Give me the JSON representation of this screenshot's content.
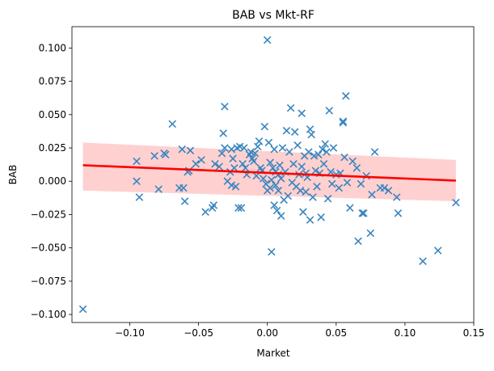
{
  "chart_data": {
    "type": "scatter",
    "title": "BAB vs Mkt-RF",
    "xlabel": "Market",
    "ylabel": "BAB",
    "xlim": [
      -0.142,
      0.15
    ],
    "ylim": [
      -0.106,
      0.116
    ],
    "xticks": [
      "−0.10",
      "−0.05",
      "0.00",
      "0.05",
      "0.10",
      "0.15"
    ],
    "xtick_values": [
      -0.1,
      -0.05,
      0.0,
      0.05,
      0.1,
      0.15
    ],
    "yticks": [
      "−0.100",
      "−0.075",
      "−0.050",
      "−0.025",
      "0.000",
      "0.025",
      "0.050",
      "0.075",
      "0.100"
    ],
    "ytick_values": [
      -0.1,
      -0.075,
      -0.05,
      -0.025,
      0.0,
      0.025,
      0.05,
      0.075,
      0.1
    ],
    "grid": false,
    "marker": "x",
    "colors": {
      "points": "#3a86c0",
      "regression": "#ff0000",
      "band": "#ffc8c8"
    },
    "regression": {
      "x": [
        -0.134,
        0.137
      ],
      "y": [
        0.012,
        0.0005
      ],
      "ci_upper": [
        0.029,
        0.016
      ],
      "ci_lower": [
        -0.007,
        -0.015
      ]
    },
    "points": [
      {
        "x": -0.134,
        "y": -0.096
      },
      {
        "x": -0.095,
        "y": 0.015
      },
      {
        "x": -0.095,
        "y": 0.0
      },
      {
        "x": -0.093,
        "y": -0.012
      },
      {
        "x": -0.082,
        "y": 0.019
      },
      {
        "x": -0.079,
        "y": -0.006
      },
      {
        "x": -0.075,
        "y": 0.021
      },
      {
        "x": -0.074,
        "y": 0.02
      },
      {
        "x": -0.069,
        "y": 0.043
      },
      {
        "x": -0.064,
        "y": -0.005
      },
      {
        "x": -0.062,
        "y": 0.024
      },
      {
        "x": -0.061,
        "y": -0.005
      },
      {
        "x": -0.06,
        "y": -0.015
      },
      {
        "x": -0.058,
        "y": 0.007
      },
      {
        "x": -0.057,
        "y": 0.008
      },
      {
        "x": -0.056,
        "y": 0.023
      },
      {
        "x": -0.052,
        "y": 0.013
      },
      {
        "x": -0.048,
        "y": 0.016
      },
      {
        "x": -0.045,
        "y": -0.023
      },
      {
        "x": -0.04,
        "y": -0.02
      },
      {
        "x": -0.039,
        "y": -0.018
      },
      {
        "x": -0.038,
        "y": 0.013
      },
      {
        "x": -0.035,
        "y": 0.011
      },
      {
        "x": -0.033,
        "y": 0.021
      },
      {
        "x": -0.032,
        "y": 0.036
      },
      {
        "x": -0.031,
        "y": 0.025
      },
      {
        "x": -0.031,
        "y": 0.056
      },
      {
        "x": -0.029,
        "y": 0.0
      },
      {
        "x": -0.027,
        "y": 0.007
      },
      {
        "x": -0.026,
        "y": -0.003
      },
      {
        "x": -0.026,
        "y": 0.024
      },
      {
        "x": -0.025,
        "y": 0.017
      },
      {
        "x": -0.024,
        "y": 0.01
      },
      {
        "x": -0.023,
        "y": -0.004
      },
      {
        "x": -0.022,
        "y": 0.025
      },
      {
        "x": -0.021,
        "y": -0.02
      },
      {
        "x": -0.02,
        "y": 0.026
      },
      {
        "x": -0.019,
        "y": -0.02
      },
      {
        "x": -0.018,
        "y": 0.013
      },
      {
        "x": -0.017,
        "y": 0.025
      },
      {
        "x": -0.016,
        "y": 0.01
      },
      {
        "x": -0.015,
        "y": 0.005
      },
      {
        "x": -0.013,
        "y": 0.02
      },
      {
        "x": -0.012,
        "y": 0.022
      },
      {
        "x": -0.011,
        "y": 0.017
      },
      {
        "x": -0.01,
        "y": 0.015
      },
      {
        "x": -0.009,
        "y": 0.021
      },
      {
        "x": -0.008,
        "y": 0.004
      },
      {
        "x": -0.007,
        "y": 0.026
      },
      {
        "x": -0.006,
        "y": 0.03
      },
      {
        "x": -0.005,
        "y": 0.01
      },
      {
        "x": -0.004,
        "y": 0.008
      },
      {
        "x": -0.003,
        "y": 0.002
      },
      {
        "x": -0.002,
        "y": 0.041
      },
      {
        "x": -0.001,
        "y": -0.002
      },
      {
        "x": 0.0,
        "y": -0.007
      },
      {
        "x": 0.0,
        "y": 0.106
      },
      {
        "x": 0.001,
        "y": 0.029
      },
      {
        "x": 0.002,
        "y": 0.014
      },
      {
        "x": 0.002,
        "y": -0.005
      },
      {
        "x": 0.003,
        "y": 0.001
      },
      {
        "x": 0.003,
        "y": -0.053
      },
      {
        "x": 0.004,
        "y": 0.01
      },
      {
        "x": 0.005,
        "y": -0.018
      },
      {
        "x": 0.005,
        "y": 0.024
      },
      {
        "x": 0.006,
        "y": -0.003
      },
      {
        "x": 0.006,
        "y": 0.007
      },
      {
        "x": 0.007,
        "y": -0.022
      },
      {
        "x": 0.008,
        "y": 0.005
      },
      {
        "x": 0.008,
        "y": -0.007
      },
      {
        "x": 0.009,
        "y": 0.012
      },
      {
        "x": 0.01,
        "y": 0.002
      },
      {
        "x": 0.01,
        "y": -0.026
      },
      {
        "x": 0.011,
        "y": 0.025
      },
      {
        "x": 0.012,
        "y": -0.014
      },
      {
        "x": 0.013,
        "y": 0.007
      },
      {
        "x": 0.014,
        "y": 0.038
      },
      {
        "x": 0.015,
        "y": -0.011
      },
      {
        "x": 0.016,
        "y": 0.022
      },
      {
        "x": 0.017,
        "y": 0.055
      },
      {
        "x": 0.018,
        "y": -0.001
      },
      {
        "x": 0.019,
        "y": 0.013
      },
      {
        "x": 0.02,
        "y": 0.037
      },
      {
        "x": 0.021,
        "y": -0.004
      },
      {
        "x": 0.022,
        "y": 0.027
      },
      {
        "x": 0.023,
        "y": 0.005
      },
      {
        "x": 0.024,
        "y": -0.007
      },
      {
        "x": 0.025,
        "y": 0.051
      },
      {
        "x": 0.025,
        "y": 0.011
      },
      {
        "x": 0.026,
        "y": -0.023
      },
      {
        "x": 0.027,
        "y": 0.019
      },
      {
        "x": 0.028,
        "y": -0.008
      },
      {
        "x": 0.028,
        "y": 0.006
      },
      {
        "x": 0.029,
        "y": 0.003
      },
      {
        "x": 0.03,
        "y": 0.022
      },
      {
        "x": 0.031,
        "y": -0.029
      },
      {
        "x": 0.031,
        "y": 0.039
      },
      {
        "x": 0.032,
        "y": 0.035
      },
      {
        "x": 0.033,
        "y": -0.012
      },
      {
        "x": 0.034,
        "y": 0.019
      },
      {
        "x": 0.035,
        "y": 0.008
      },
      {
        "x": 0.036,
        "y": -0.004
      },
      {
        "x": 0.037,
        "y": 0.02
      },
      {
        "x": 0.038,
        "y": 0.006
      },
      {
        "x": 0.039,
        "y": -0.027
      },
      {
        "x": 0.04,
        "y": 0.024
      },
      {
        "x": 0.041,
        "y": 0.013
      },
      {
        "x": 0.042,
        "y": 0.028
      },
      {
        "x": 0.043,
        "y": 0.022
      },
      {
        "x": 0.044,
        "y": -0.013
      },
      {
        "x": 0.045,
        "y": 0.053
      },
      {
        "x": 0.046,
        "y": 0.007
      },
      {
        "x": 0.047,
        "y": -0.002
      },
      {
        "x": 0.048,
        "y": 0.025
      },
      {
        "x": 0.05,
        "y": 0.005
      },
      {
        "x": 0.052,
        "y": -0.005
      },
      {
        "x": 0.053,
        "y": 0.006
      },
      {
        "x": 0.055,
        "y": 0.045
      },
      {
        "x": 0.055,
        "y": 0.044
      },
      {
        "x": 0.056,
        "y": 0.018
      },
      {
        "x": 0.057,
        "y": 0.064
      },
      {
        "x": 0.058,
        "y": -0.001
      },
      {
        "x": 0.06,
        "y": -0.02
      },
      {
        "x": 0.062,
        "y": 0.015
      },
      {
        "x": 0.065,
        "y": 0.01
      },
      {
        "x": 0.066,
        "y": -0.045
      },
      {
        "x": 0.068,
        "y": -0.002
      },
      {
        "x": 0.069,
        "y": -0.024
      },
      {
        "x": 0.07,
        "y": -0.024
      },
      {
        "x": 0.072,
        "y": 0.004
      },
      {
        "x": 0.075,
        "y": -0.039
      },
      {
        "x": 0.076,
        "y": -0.01
      },
      {
        "x": 0.078,
        "y": 0.022
      },
      {
        "x": 0.082,
        "y": -0.005
      },
      {
        "x": 0.085,
        "y": -0.005
      },
      {
        "x": 0.088,
        "y": -0.007
      },
      {
        "x": 0.094,
        "y": -0.012
      },
      {
        "x": 0.095,
        "y": -0.024
      },
      {
        "x": 0.113,
        "y": -0.06
      },
      {
        "x": 0.124,
        "y": -0.052
      },
      {
        "x": 0.137,
        "y": -0.016
      }
    ]
  }
}
